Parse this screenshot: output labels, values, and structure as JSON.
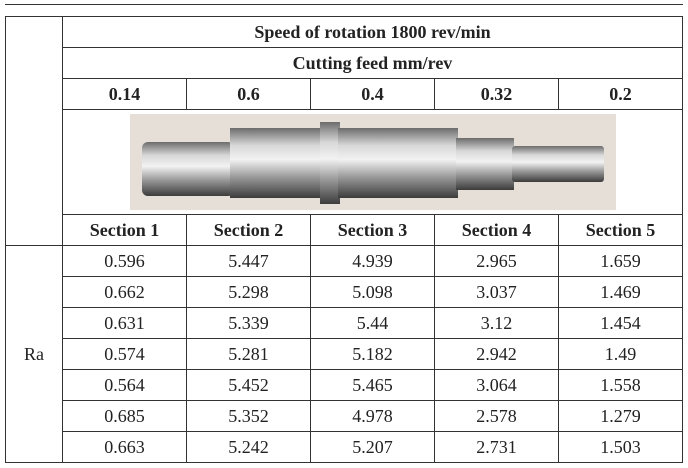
{
  "header": {
    "title": "Speed of rotation 1800 rev/min",
    "subtitle": "Cutting feed mm/rev",
    "feeds": [
      "0.14",
      "0.6",
      "0.4",
      "0.32",
      "0.2"
    ],
    "sections": [
      "Section 1",
      "Section 2",
      "Section 3",
      "Section 4",
      "Section 5"
    ]
  },
  "table": {
    "row_label": "Ra",
    "rows": [
      [
        "0.596",
        "5.447",
        "4.939",
        "2.965",
        "1.659"
      ],
      [
        "0.662",
        "5.298",
        "5.098",
        "3.037",
        "1.469"
      ],
      [
        "0.631",
        "5.339",
        "5.44",
        "3.12",
        "1.454"
      ],
      [
        "0.574",
        "5.281",
        "5.182",
        "2.942",
        "1.49"
      ],
      [
        "0.564",
        "5.452",
        "5.465",
        "3.064",
        "1.558"
      ],
      [
        "0.685",
        "5.352",
        "4.978",
        "2.578",
        "1.279"
      ],
      [
        "0.663",
        "5.242",
        "5.207",
        "2.731",
        "1.503"
      ]
    ]
  }
}
